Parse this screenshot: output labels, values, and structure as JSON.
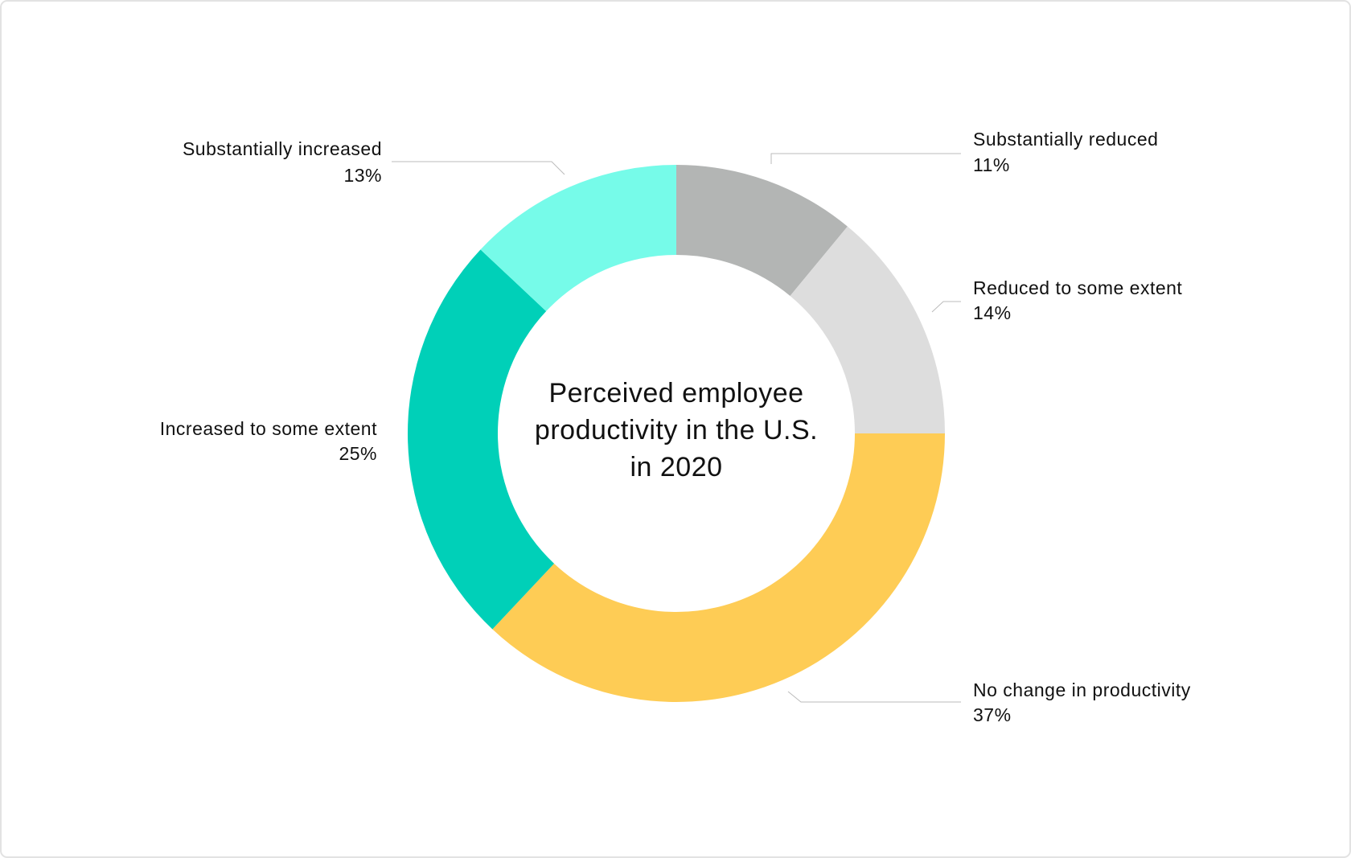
{
  "chart_data": {
    "type": "pie",
    "title": "Perceived employee productivity in the U.S. in 2020",
    "categories": [
      "Substantially reduced",
      "Reduced to some extent",
      "No change in productivity",
      "Increased to some extent",
      "Substantially increased"
    ],
    "values": [
      11,
      14,
      37,
      25,
      13
    ],
    "value_labels": [
      "11%",
      "14%",
      "37%",
      "25%",
      "13%"
    ],
    "colors": [
      "#b3b5b4",
      "#dddddd",
      "#fecc55",
      "#00d0b8",
      "#76fbe9"
    ]
  }
}
